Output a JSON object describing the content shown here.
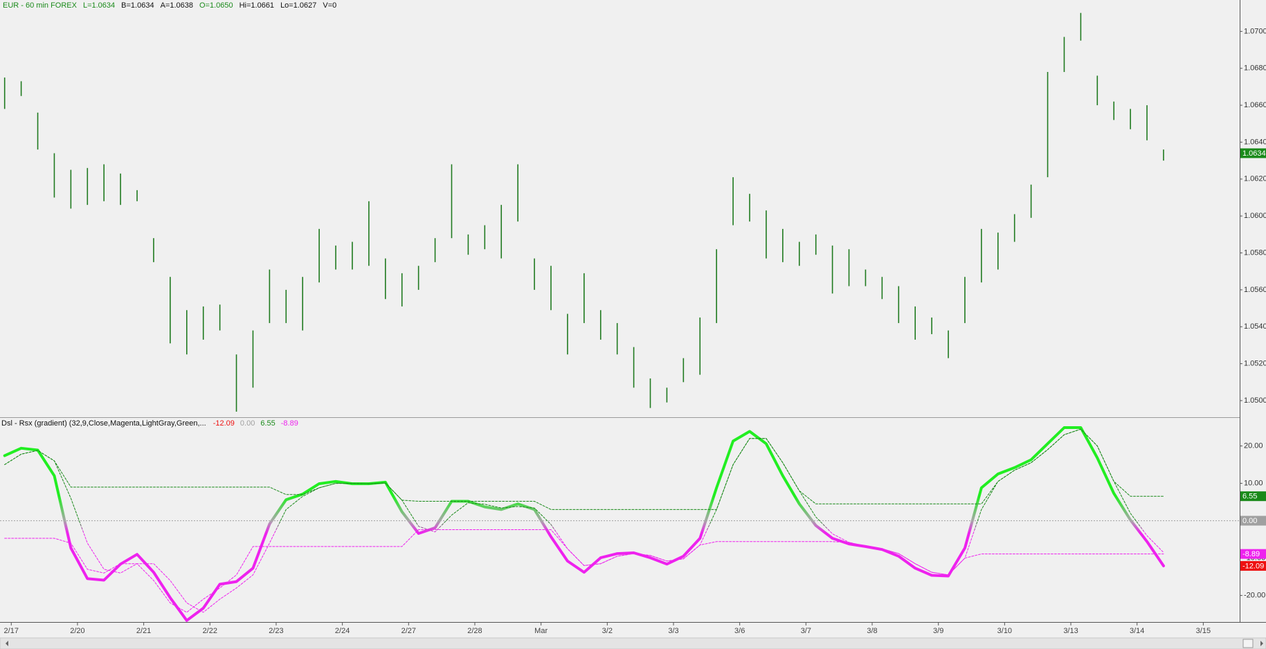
{
  "chart_data": [
    {
      "type": "ohlc",
      "header": [
        {
          "text": "EUR - 60 min  FOREX",
          "color": "#1a8a1a"
        },
        {
          "text": "L=1.0634",
          "color": "#1a8a1a"
        },
        {
          "text": "B=1.0634",
          "color": "#111111"
        },
        {
          "text": "A=1.0638",
          "color": "#111111"
        },
        {
          "text": "O=1.0650",
          "color": "#1a8a1a"
        },
        {
          "text": "Hi=1.0661",
          "color": "#111111"
        },
        {
          "text": "Lo=1.0627",
          "color": "#111111"
        },
        {
          "text": "V=0",
          "color": "#111111"
        }
      ],
      "x": [
        -0.1,
        0.15,
        0.4,
        0.65,
        0.9,
        1.15,
        1.4,
        1.65,
        1.9,
        2.15,
        2.4,
        2.65,
        2.9,
        3.15,
        3.4,
        3.65,
        3.9,
        4.15,
        4.4,
        4.65,
        4.9,
        5.15,
        5.4,
        5.65,
        5.9,
        6.15,
        6.4,
        6.65,
        6.9,
        7.15,
        7.4,
        7.65,
        7.9,
        8.15,
        8.4,
        8.65,
        8.9,
        9.15,
        9.4,
        9.65,
        9.9,
        10.15,
        10.4,
        10.65,
        10.9,
        11.15,
        11.4,
        11.65,
        11.9,
        12.15,
        12.4,
        12.65,
        12.9,
        13.15,
        13.4,
        13.65,
        13.9,
        14.15,
        14.4,
        14.65,
        14.9,
        15.15,
        15.4,
        15.65,
        15.9,
        16.15,
        16.4,
        16.65,
        16.9,
        17.15,
        17.4
      ],
      "high": [
        1.0675,
        1.0673,
        1.0656,
        1.0634,
        1.0625,
        1.0626,
        1.0628,
        1.0623,
        1.0614,
        1.0588,
        1.0567,
        1.0549,
        1.0551,
        1.0552,
        1.0525,
        1.0538,
        1.0571,
        1.056,
        1.0567,
        1.0593,
        1.0584,
        1.0586,
        1.0608,
        1.0577,
        1.0569,
        1.0573,
        1.0588,
        1.0628,
        1.059,
        1.0595,
        1.0606,
        1.0628,
        1.0577,
        1.0573,
        1.0547,
        1.0569,
        1.0549,
        1.0542,
        1.0529,
        1.0512,
        1.0507,
        1.0523,
        1.0545,
        1.0582,
        1.0621,
        1.0612,
        1.0603,
        1.0593,
        1.0586,
        1.059,
        1.0584,
        1.0582,
        1.0571,
        1.0567,
        1.0562,
        1.0551,
        1.0545,
        1.0538,
        1.0567,
        1.0593,
        1.0591,
        1.0601,
        1.0617,
        1.0678,
        1.0697,
        1.071,
        1.0676,
        1.0662,
        1.0658,
        1.066,
        1.0636
      ],
      "low": [
        1.0658,
        1.0665,
        1.0636,
        1.061,
        1.0604,
        1.0606,
        1.0608,
        1.0606,
        1.0608,
        1.0575,
        1.0531,
        1.0525,
        1.0533,
        1.0538,
        1.0494,
        1.0507,
        1.0542,
        1.0542,
        1.0538,
        1.0564,
        1.0571,
        1.0571,
        1.0573,
        1.0555,
        1.0551,
        1.056,
        1.0575,
        1.0588,
        1.0579,
        1.0582,
        1.0577,
        1.0597,
        1.056,
        1.0549,
        1.0525,
        1.0542,
        1.0533,
        1.0525,
        1.0507,
        1.0496,
        1.0499,
        1.051,
        1.0514,
        1.0542,
        1.0595,
        1.0597,
        1.0577,
        1.0575,
        1.0573,
        1.0579,
        1.0558,
        1.0562,
        1.0562,
        1.0555,
        1.0542,
        1.0533,
        1.0536,
        1.0523,
        1.0542,
        1.0564,
        1.0571,
        1.0586,
        1.0599,
        1.0621,
        1.0678,
        1.0695,
        1.066,
        1.0652,
        1.0647,
        1.0641,
        1.063
      ],
      "color": "#1f7a1f",
      "xlim": [
        -0.17,
        18.55
      ],
      "ylim": [
        1.0491,
        1.0717
      ],
      "yticks": [
        {
          "value": 1.05,
          "label": "1.0500"
        },
        {
          "value": 1.052,
          "label": "1.0520"
        },
        {
          "value": 1.054,
          "label": "1.0540"
        },
        {
          "value": 1.056,
          "label": "1.0560"
        },
        {
          "value": 1.058,
          "label": "1.0580"
        },
        {
          "value": 1.06,
          "label": "1.0600"
        },
        {
          "value": 1.062,
          "label": "1.0620"
        },
        {
          "value": 1.064,
          "label": "1.0640"
        },
        {
          "value": 1.066,
          "label": "1.0660"
        },
        {
          "value": 1.068,
          "label": "1.0680"
        },
        {
          "value": 1.07,
          "label": "1.0700"
        }
      ],
      "last_price": {
        "value": 1.0634,
        "label": "1.0634",
        "color": "#1a8a1a"
      }
    },
    {
      "type": "line",
      "title": "Dsl - Rsx (gradient) (32,9,Close,Magenta,LightGray,Green,...",
      "x": [
        -0.1,
        0.15,
        0.4,
        0.65,
        0.9,
        1.15,
        1.4,
        1.65,
        1.9,
        2.15,
        2.4,
        2.65,
        2.9,
        3.15,
        3.4,
        3.65,
        3.9,
        4.15,
        4.4,
        4.65,
        4.9,
        5.15,
        5.4,
        5.65,
        5.9,
        6.15,
        6.4,
        6.65,
        6.9,
        7.15,
        7.4,
        7.65,
        7.9,
        8.15,
        8.4,
        8.65,
        8.9,
        9.15,
        9.4,
        9.65,
        9.9,
        10.15,
        10.4,
        10.65,
        10.9,
        11.15,
        11.4,
        11.65,
        11.9,
        12.15,
        12.4,
        12.65,
        12.9,
        13.15,
        13.4,
        13.65,
        13.9,
        14.15,
        14.4,
        14.65,
        14.9,
        15.15,
        15.4,
        15.65,
        15.9,
        16.15,
        16.4,
        16.65,
        16.9,
        17.15,
        17.4
      ],
      "xlim": [
        -0.17,
        18.55
      ],
      "ylim": [
        -27.1,
        27.5
      ],
      "yticks": [
        {
          "value": 20,
          "label": "20.00"
        },
        {
          "value": 10,
          "label": "10.00"
        },
        {
          "value": -10,
          "label": "-10.00"
        },
        {
          "value": -20,
          "label": "-20.00"
        }
      ],
      "zero_level": {
        "value": 0,
        "label": "0.00",
        "color": "#a0a0a0"
      },
      "series": [
        {
          "values": [
            17.4,
            19.4,
            18.9,
            12.0,
            -7.3,
            -15.5,
            -15.9,
            -11.6,
            -9.0,
            -13.8,
            -20.6,
            -26.7,
            -23.4,
            -17.0,
            -16.3,
            -12.7,
            -0.9,
            5.6,
            7.1,
            9.9,
            10.5,
            9.9,
            9.9,
            10.3,
            2.4,
            -3.4,
            -1.9,
            5.2,
            5.2,
            3.7,
            3.0,
            4.5,
            3.0,
            -4.3,
            -10.8,
            -13.8,
            -9.9,
            -8.8,
            -8.6,
            -9.9,
            -11.6,
            -9.5,
            -4.7,
            8.8,
            21.3,
            23.9,
            20.6,
            12.0,
            4.5,
            -1.3,
            -4.7,
            -6.2,
            -6.9,
            -7.7,
            -9.5,
            -12.7,
            -14.6,
            -14.8,
            -7.3,
            8.8,
            12.5,
            14.2,
            16.3,
            20.6,
            24.9,
            24.9,
            16.8,
            7.3,
            0.2,
            -5.6,
            -12.09
          ],
          "gradient": [
            "#22ee22",
            "#a8a8a8",
            "#ee22ee"
          ],
          "width": 4,
          "dashed": false,
          "label_color": "#ee1111"
        },
        {
          "values": [
            15.0,
            17.8,
            18.8,
            16.0,
            6.0,
            -6.0,
            -13.0,
            -14.0,
            -11.5,
            -11.5,
            -16.0,
            -22.0,
            -24.5,
            -21.0,
            -18.0,
            -14.5,
            -6.0,
            3.0,
            6.5,
            8.8,
            10.0,
            10.0,
            9.9,
            10.1,
            5.5,
            -1.5,
            -3.0,
            1.5,
            4.8,
            4.4,
            3.4,
            3.8,
            3.4,
            -1.0,
            -7.5,
            -12.0,
            -11.5,
            -9.5,
            -8.8,
            -9.3,
            -10.8,
            -10.2,
            -6.5,
            3.0,
            15.0,
            22.0,
            22.0,
            15.5,
            8.0,
            1.0,
            -3.5,
            -5.8,
            -6.8,
            -7.5,
            -8.8,
            -11.5,
            -13.8,
            -14.5,
            -10.0,
            3.0,
            10.5,
            13.5,
            15.5,
            19.0,
            23.0,
            24.5,
            20.0,
            10.5,
            2.0,
            -4.0,
            -8.5
          ],
          "gradient": [
            "#1a8a1a",
            "#1a8a1a",
            "#ee22ee"
          ],
          "width": 1,
          "dashed": true
        },
        {
          "values": [
            15.0,
            17.8,
            18.8,
            16.0,
            9.0,
            9.0,
            9.0,
            9.0,
            9.0,
            9.0,
            9.0,
            9.0,
            9.0,
            9.0,
            9.0,
            9.0,
            9.0,
            7.0,
            7.0,
            8.8,
            10.0,
            10.0,
            9.9,
            10.1,
            5.5,
            5.2,
            5.2,
            5.2,
            5.2,
            5.2,
            5.2,
            5.2,
            5.2,
            3.0,
            3.0,
            3.0,
            3.0,
            3.0,
            3.0,
            3.0,
            3.0,
            3.0,
            3.0,
            3.0,
            15.0,
            22.0,
            22.0,
            15.5,
            8.0,
            4.5,
            4.5,
            4.5,
            4.5,
            4.5,
            4.5,
            4.5,
            4.5,
            4.5,
            4.5,
            4.5,
            10.5,
            13.5,
            15.5,
            19.0,
            23.0,
            24.5,
            20.0,
            10.5,
            6.55,
            6.55,
            6.55
          ],
          "color": "#1a8a1a",
          "width": 1,
          "dashed": true,
          "label_color": "#1a8a1a"
        },
        {
          "values": [
            -4.7,
            -4.7,
            -4.7,
            -4.7,
            -6.0,
            -13.0,
            -14.0,
            -11.5,
            -11.5,
            -16.0,
            -22.0,
            -24.5,
            -21.0,
            -18.0,
            -14.5,
            -6.9,
            -6.9,
            -6.9,
            -6.9,
            -6.9,
            -6.9,
            -6.9,
            -6.9,
            -6.9,
            -6.9,
            -2.4,
            -2.4,
            -2.4,
            -2.4,
            -2.4,
            -2.4,
            -2.4,
            -2.4,
            -2.4,
            -7.5,
            -12.0,
            -11.5,
            -9.5,
            -8.8,
            -9.3,
            -10.8,
            -10.2,
            -6.5,
            -5.6,
            -5.6,
            -5.6,
            -5.6,
            -5.6,
            -5.6,
            -5.6,
            -5.6,
            -5.8,
            -6.8,
            -7.5,
            -8.8,
            -11.5,
            -13.8,
            -14.5,
            -10.0,
            -8.89,
            -8.89,
            -8.89,
            -8.89,
            -8.89,
            -8.89,
            -8.89,
            -8.89,
            -8.89,
            -8.89,
            -8.89,
            -8.89
          ],
          "color": "#ee22ee",
          "width": 1,
          "dashed": true,
          "label_color": "#ee22ee"
        }
      ],
      "xticks": [
        {
          "value": 0,
          "label": "2/17"
        },
        {
          "value": 1,
          "label": "2/20"
        },
        {
          "value": 2,
          "label": "2/21"
        },
        {
          "value": 3,
          "label": "2/22"
        },
        {
          "value": 4,
          "label": "2/23"
        },
        {
          "value": 5,
          "label": "2/24"
        },
        {
          "value": 6,
          "label": "2/27"
        },
        {
          "value": 7,
          "label": "2/28"
        },
        {
          "value": 8,
          "label": "Mar"
        },
        {
          "value": 9,
          "label": "3/2"
        },
        {
          "value": 10,
          "label": "3/3"
        },
        {
          "value": 11,
          "label": "3/6"
        },
        {
          "value": 12,
          "label": "3/7"
        },
        {
          "value": 13,
          "label": "3/8"
        },
        {
          "value": 14,
          "label": "3/9"
        },
        {
          "value": 15,
          "label": "3/10"
        },
        {
          "value": 16,
          "label": "3/13"
        },
        {
          "value": 17,
          "label": "3/14"
        },
        {
          "value": 18,
          "label": "3/15"
        }
      ]
    }
  ]
}
